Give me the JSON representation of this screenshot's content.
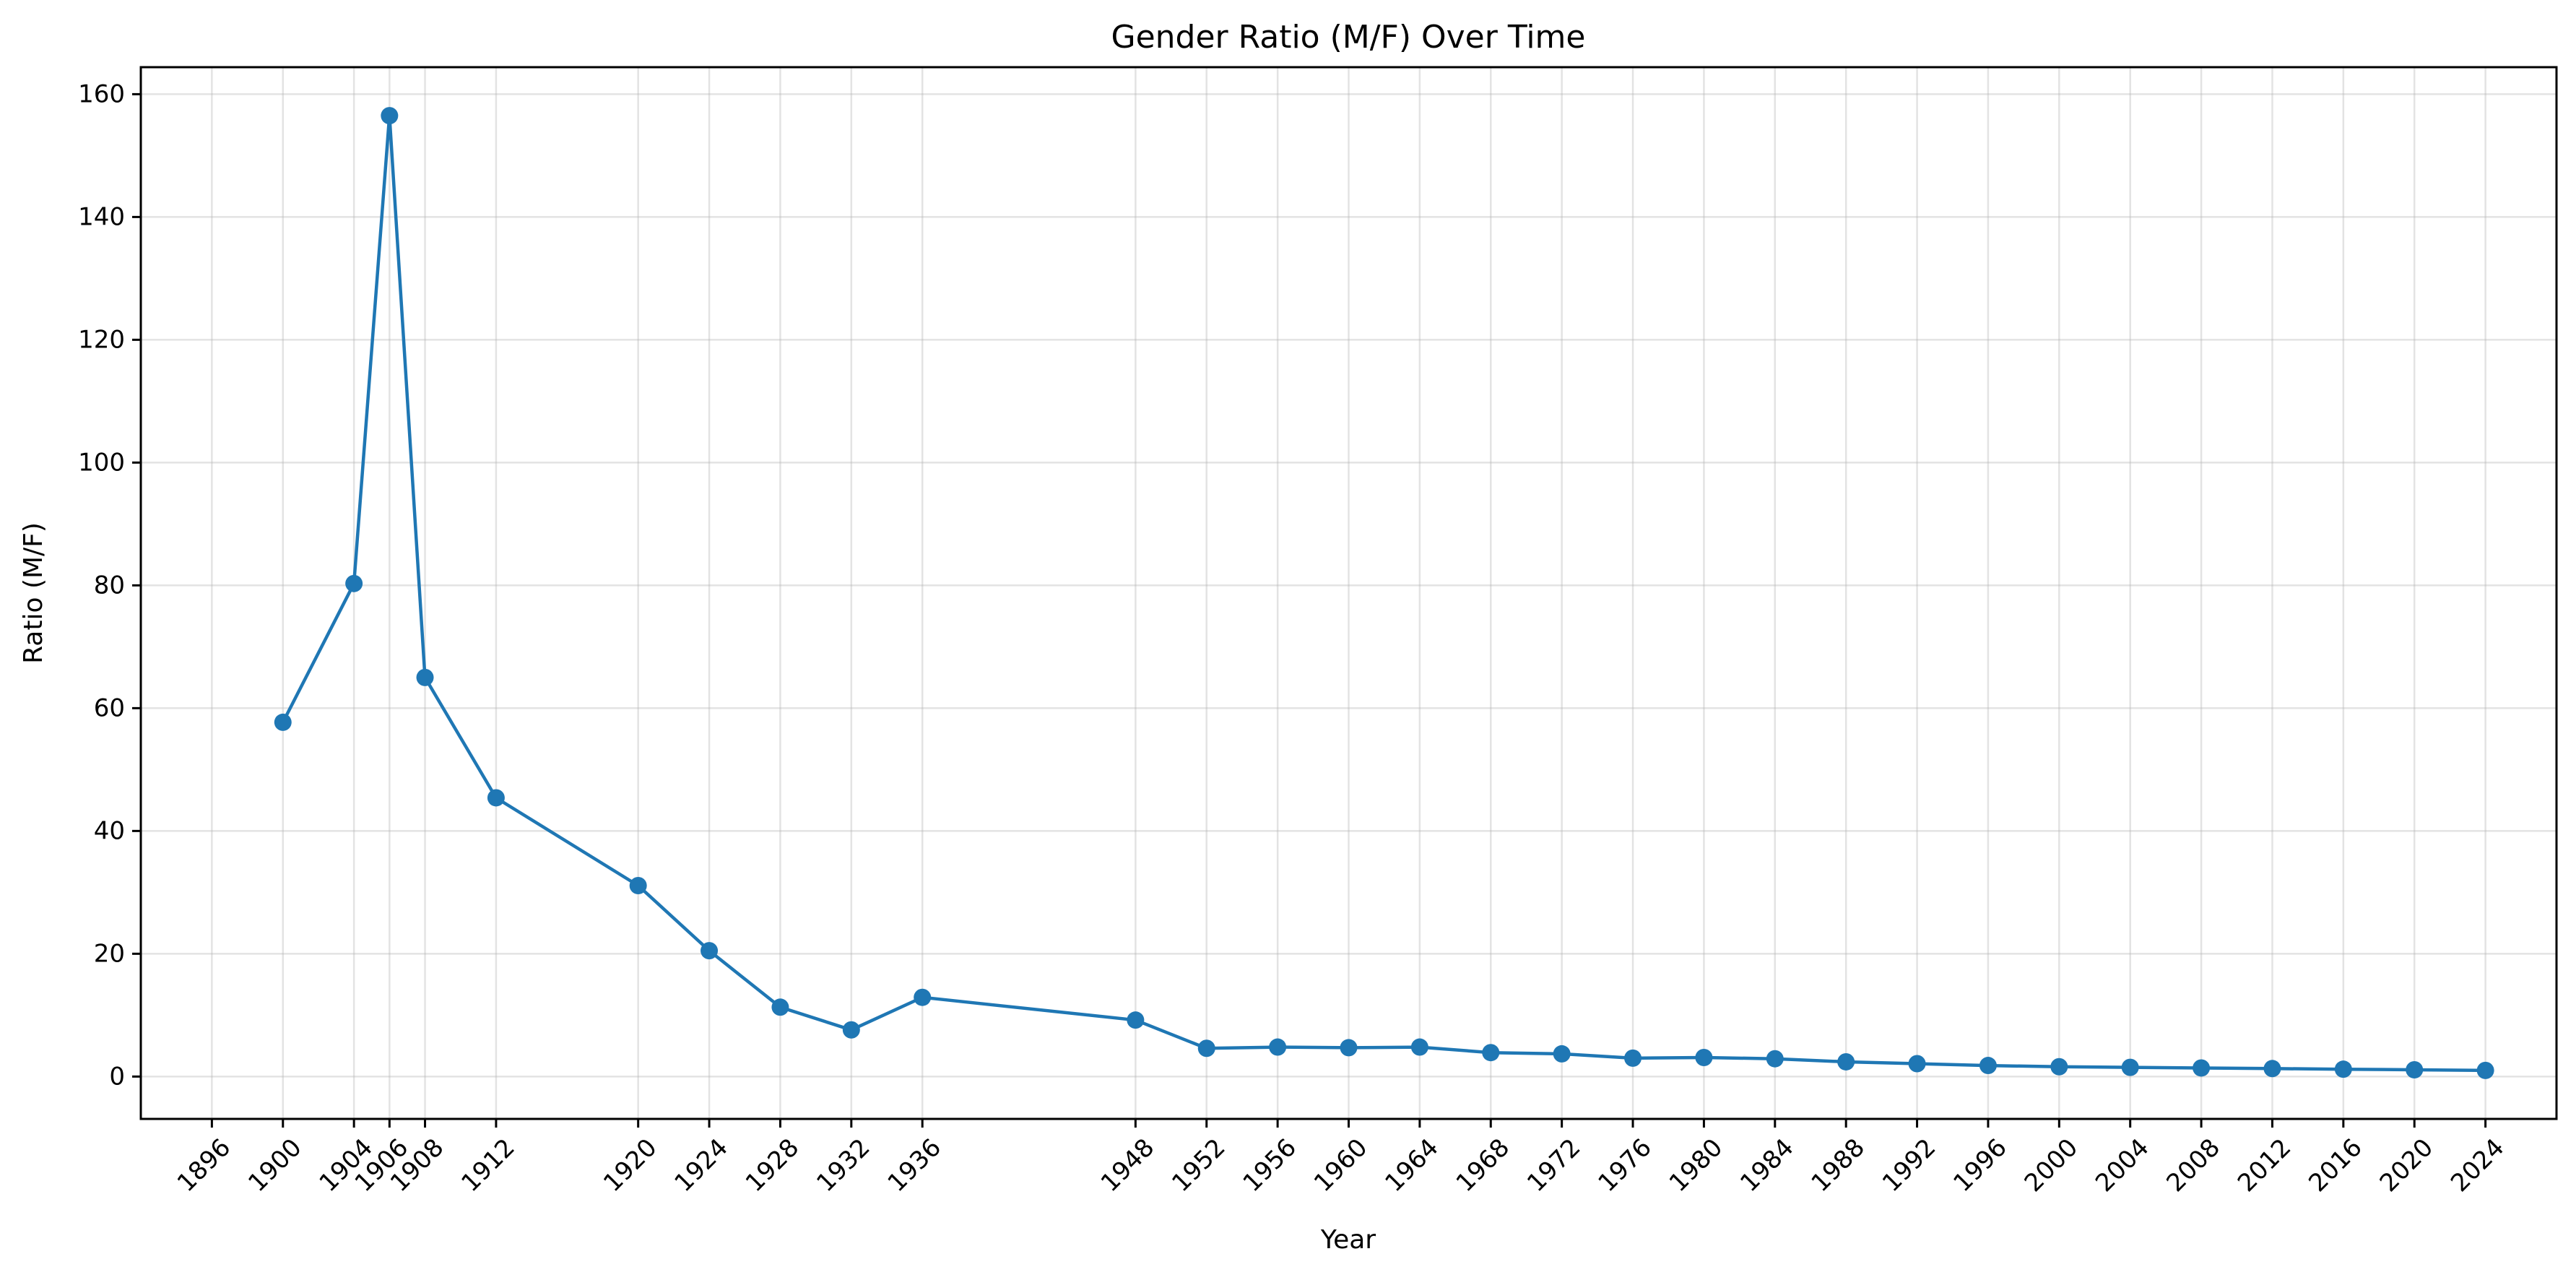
{
  "chart_data": {
    "type": "line",
    "title": "Gender Ratio (M/F) Over Time",
    "xlabel": "Year",
    "ylabel": "Ratio (M/F)",
    "xlim": [
      1892,
      2028
    ],
    "ylim": [
      -6.9,
      164.4
    ],
    "grid": true,
    "x_ticks": [
      1896,
      1900,
      1904,
      1906,
      1908,
      1912,
      1920,
      1924,
      1928,
      1932,
      1936,
      1948,
      1952,
      1956,
      1960,
      1964,
      1968,
      1972,
      1976,
      1980,
      1984,
      1988,
      1992,
      1996,
      2000,
      2004,
      2008,
      2012,
      2016,
      2020,
      2024
    ],
    "y_ticks": [
      0,
      20,
      40,
      60,
      80,
      100,
      120,
      140,
      160
    ],
    "series": [
      {
        "color": "#1f77b4",
        "marker": "circle",
        "x": [
          1900,
          1904,
          1906,
          1908,
          1912,
          1920,
          1924,
          1928,
          1932,
          1936,
          1948,
          1952,
          1956,
          1960,
          1964,
          1968,
          1972,
          1976,
          1980,
          1984,
          1988,
          1992,
          1996,
          2000,
          2004,
          2008,
          2012,
          2016,
          2020,
          2024
        ],
        "y": [
          57.7,
          80.3,
          156.5,
          65.0,
          45.4,
          31.1,
          20.5,
          11.3,
          7.6,
          12.9,
          9.2,
          4.6,
          4.8,
          4.7,
          4.8,
          3.9,
          3.7,
          3.0,
          3.1,
          2.9,
          2.4,
          2.1,
          1.8,
          1.6,
          1.5,
          1.4,
          1.3,
          1.2,
          1.1,
          1.0
        ]
      }
    ]
  }
}
